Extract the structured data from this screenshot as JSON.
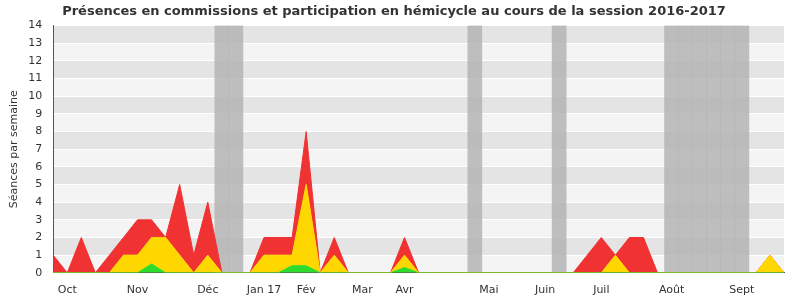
{
  "chart_data": {
    "type": "line",
    "title": "Présences en commissions et participation en hémicycle au cours de la session 2016-2017",
    "y_label": "Séances par semaine",
    "categories": [
      null,
      "Oct",
      null,
      null,
      null,
      null,
      "Nov",
      null,
      null,
      null,
      null,
      "Déc",
      null,
      null,
      null,
      "Jan 17",
      null,
      null,
      "Fév",
      null,
      null,
      null,
      "Mar",
      null,
      null,
      "Avr",
      null,
      null,
      null,
      null,
      null,
      "Mai",
      null,
      null,
      null,
      "Juin",
      null,
      null,
      null,
      "Juil",
      null,
      null,
      null,
      null,
      "Août",
      null,
      null,
      null,
      null,
      "Sept",
      null,
      null,
      null
    ],
    "series": [
      {
        "type": "line",
        "color": "#2edc2e",
        "values": [
          0,
          0,
          0,
          0,
          0,
          0,
          0,
          0.5,
          0,
          0,
          0,
          0,
          0,
          0,
          0,
          0,
          0,
          0.4,
          0.4,
          0,
          0,
          0,
          0,
          0,
          0,
          0.3,
          0,
          0,
          0,
          0,
          0,
          0,
          0,
          0,
          0,
          0,
          0,
          0,
          0,
          0,
          0,
          0,
          0,
          0,
          0,
          0,
          0,
          0,
          0,
          0,
          0,
          0,
          0
        ]
      },
      {
        "type": "line",
        "color": "#ffd700",
        "values": [
          0,
          0,
          0,
          0,
          0,
          1,
          1,
          1.5,
          2,
          1,
          0,
          1,
          0,
          0,
          0,
          1,
          1,
          0.6,
          4.6,
          0,
          1,
          0,
          0,
          0,
          0,
          0.7,
          0,
          0,
          0,
          0,
          0,
          0,
          0,
          0,
          0,
          0,
          0,
          0,
          0,
          0,
          1,
          0,
          0,
          0,
          0,
          0,
          0,
          0,
          0,
          0,
          0,
          1,
          0
        ]
      },
      {
        "type": "line",
        "color": "#f03232",
        "values": [
          1,
          0,
          2,
          0,
          1,
          1,
          2,
          1,
          0,
          4,
          1,
          3,
          0,
          0,
          0,
          1,
          1,
          1,
          3,
          0,
          1,
          0,
          0,
          0,
          0,
          1,
          0,
          0,
          0,
          0,
          0,
          0,
          0,
          0,
          0,
          0,
          0,
          0,
          1,
          2,
          0,
          2,
          2,
          0,
          0,
          0,
          0,
          0,
          0,
          0,
          0,
          0,
          0
        ]
      },
      {
        "type": "bar",
        "color": "#b4b4b4",
        "values": [
          null,
          null,
          null,
          null,
          null,
          null,
          null,
          null,
          null,
          null,
          null,
          null,
          14,
          14,
          null,
          null,
          null,
          null,
          null,
          null,
          null,
          null,
          null,
          null,
          null,
          null,
          null,
          null,
          null,
          null,
          14,
          null,
          null,
          null,
          null,
          null,
          14,
          null,
          null,
          null,
          null,
          null,
          null,
          null,
          14,
          14,
          14,
          14,
          14,
          14,
          null,
          null,
          null
        ]
      }
    ],
    "stacked": true,
    "ylim": [
      0,
      14
    ],
    "yticks": [
      0,
      1,
      2,
      3,
      4,
      5,
      6,
      7,
      8,
      9,
      10,
      11,
      12,
      13,
      14
    ],
    "grid": true
  }
}
